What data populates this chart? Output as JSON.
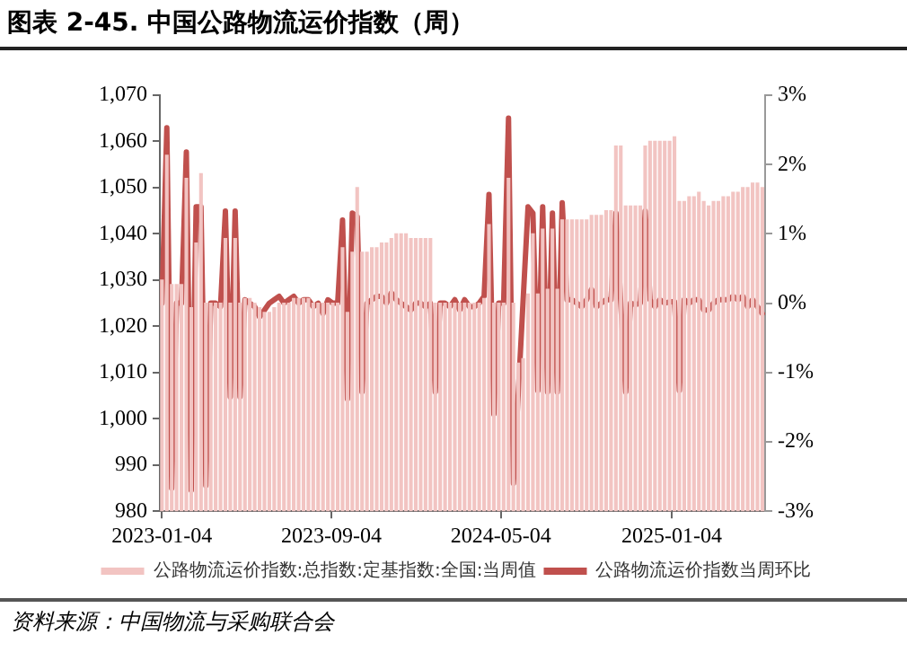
{
  "chart_data": {
    "type": "bar",
    "title": "图表 2-45. 中国公路物流运价指数（周）",
    "x": [
      "2023-01-04",
      "2023-01-11",
      "2023-01-18",
      "2023-01-25",
      "2023-02-01",
      "2023-02-08",
      "2023-02-15",
      "2023-02-22",
      "2023-03-01",
      "2023-03-08",
      "2023-03-15",
      "2023-03-22",
      "2023-03-29",
      "2023-04-05",
      "2023-04-12",
      "2023-04-19",
      "2023-04-26",
      "2023-05-03",
      "2023-05-10",
      "2023-05-17",
      "2023-05-24",
      "2023-05-31",
      "2023-06-07",
      "2023-06-14",
      "2023-06-21",
      "2023-06-28",
      "2023-07-05",
      "2023-07-12",
      "2023-07-19",
      "2023-07-26",
      "2023-08-02",
      "2023-08-09",
      "2023-08-16",
      "2023-08-23",
      "2023-08-30",
      "2023-09-06",
      "2023-09-13",
      "2023-09-20",
      "2023-09-27",
      "2023-10-04",
      "2023-10-11",
      "2023-10-18",
      "2023-10-25",
      "2023-11-01",
      "2023-11-08",
      "2023-11-15",
      "2023-11-22",
      "2023-11-29",
      "2023-12-06",
      "2023-12-13",
      "2023-12-20",
      "2023-12-27",
      "2024-01-03",
      "2024-01-10",
      "2024-01-17",
      "2024-01-24",
      "2024-01-31",
      "2024-02-07",
      "2024-02-14",
      "2024-02-21",
      "2024-02-28",
      "2024-03-06",
      "2024-03-13",
      "2024-03-20",
      "2024-03-27",
      "2024-04-03",
      "2024-04-10",
      "2024-04-17",
      "2024-04-24",
      "2024-05-01",
      "2024-05-08",
      "2024-05-15",
      "2024-05-22",
      "2024-05-29",
      "2024-06-05",
      "2024-06-12",
      "2024-06-19",
      "2024-06-26",
      "2024-07-03",
      "2024-07-10",
      "2024-07-17",
      "2024-07-24",
      "2024-07-31",
      "2024-08-07",
      "2024-08-14",
      "2024-08-21",
      "2024-08-28",
      "2024-09-04",
      "2024-09-11",
      "2024-09-18",
      "2024-09-25",
      "2024-10-02",
      "2024-10-09",
      "2024-10-16",
      "2024-10-23",
      "2024-10-30",
      "2024-11-06",
      "2024-11-13",
      "2024-11-20",
      "2024-11-27",
      "2024-12-04",
      "2024-12-11",
      "2024-12-18",
      "2024-12-25",
      "2025-01-01",
      "2025-01-08",
      "2025-01-15",
      "2025-01-22",
      "2025-01-29",
      "2025-02-05",
      "2025-02-12",
      "2025-02-19",
      "2025-02-26",
      "2025-03-05",
      "2025-03-12",
      "2025-03-19",
      "2025-03-26",
      "2025-04-02",
      "2025-04-09",
      "2025-04-16",
      "2025-04-23",
      "2025-04-30",
      "2025-05-07",
      "2025-05-14"
    ],
    "series": [
      {
        "name": "公路物流运价指数:总指数:定基指数:全国:当周值",
        "color": "#f2c4c2",
        "values": [
          1030,
          1057,
          1029,
          1029,
          1029,
          1052,
          1024,
          1038,
          1053,
          1025,
          1025,
          1025,
          1025,
          1039,
          1025,
          1039,
          1025,
          1026,
          1026,
          1025,
          1024,
          1023,
          1023,
          1024,
          1025,
          1025,
          1025,
          1026,
          1026,
          1026,
          1026,
          1025,
          1025,
          1025,
          1025,
          1025,
          1025,
          1037,
          1023,
          1036,
          1050,
          1036,
          1036,
          1037,
          1037,
          1038,
          1038,
          1039,
          1040,
          1040,
          1040,
          1039,
          1039,
          1039,
          1039,
          1039,
          1025,
          1025,
          1025,
          1025,
          1025,
          1025,
          1025,
          1025,
          1025,
          1025,
          1026,
          1042,
          1025,
          1025,
          1025,
          1052,
          1025,
          1012,
          1013,
          1027,
          1040,
          1027,
          1041,
          1028,
          1041,
          1028,
          1043,
          1043,
          1043,
          1043,
          1043,
          1043,
          1044,
          1044,
          1044,
          1045,
          1045,
          1059,
          1059,
          1046,
          1046,
          1046,
          1046,
          1059,
          1060,
          1060,
          1060,
          1060,
          1060,
          1061,
          1047,
          1047,
          1048,
          1048,
          1049,
          1047,
          1046,
          1047,
          1047,
          1048,
          1048,
          1049,
          1049,
          1050,
          1050,
          1051,
          1051,
          1050
        ]
      },
      {
        "name": "公路物流运价指数当周环比",
        "type": "line",
        "axis": "y2",
        "color": "#c0504d",
        "values": [
          0,
          2.53,
          -2.67,
          0,
          0,
          2.18,
          -2.7,
          1.39,
          1.39,
          -2.63,
          0,
          0,
          -0.05,
          1.33,
          -1.35,
          1.33,
          -1.35,
          0.05,
          0,
          -0.05,
          -0.2,
          -0.1,
          0,
          0.05,
          0.1,
          0,
          0.05,
          0.1,
          0,
          0.05,
          0.05,
          -0.05,
          0,
          -0.15,
          0.05,
          0,
          0,
          1.2,
          -1.38,
          1.3,
          1.25,
          -1.28,
          0,
          0.05,
          0.1,
          0.1,
          0,
          0.15,
          0.05,
          0,
          -0.05,
          -0.1,
          0,
          0,
          -0.05,
          0,
          -1.28,
          0,
          0,
          -0.05,
          0.05,
          -0.1,
          0.05,
          -0.05,
          -0.05,
          0,
          0.1,
          1.57,
          -1.6,
          0,
          0,
          2.67,
          -2.6,
          -1.3,
          0.05,
          1.39,
          1.3,
          -1.26,
          1.39,
          -1.28,
          1.3,
          -1.28,
          1.45,
          0.05,
          0.05,
          0,
          -0.05,
          0.05,
          0.2,
          -0.05,
          0,
          0.05,
          0.05,
          1.3,
          0,
          -1.28,
          0,
          -0.02,
          0,
          1.33,
          0.05,
          -0.05,
          0.05,
          0,
          0.02,
          0.02,
          -1.26,
          0.05,
          0,
          0.05,
          0.05,
          -0.1,
          -0.1,
          0,
          0.05,
          0.05,
          0.05,
          0.1,
          0.05,
          0.1,
          -0.05,
          0.05,
          -0.05,
          -0.15
        ]
      }
    ],
    "xlim": [
      "2023-01-01",
      "2025-05-18"
    ],
    "xticks": [
      "2023-01-04",
      "2023-09-04",
      "2024-05-04",
      "2025-01-04"
    ],
    "ylim": [
      980,
      1070
    ],
    "yticks": [
      980,
      990,
      {
        "value": 1000,
        "label": "1,000"
      },
      {
        "value": 1010,
        "label": "1,010"
      },
      {
        "value": 1020,
        "label": "1,020"
      },
      {
        "value": 1030,
        "label": "1,030"
      },
      {
        "value": 1040,
        "label": "1,040"
      },
      {
        "value": 1050,
        "label": "1,050"
      },
      {
        "value": 1060,
        "label": "1,060"
      },
      {
        "value": 1070,
        "label": "1,070"
      }
    ],
    "y2lim": [
      -3,
      3
    ],
    "y2ticks": [
      {
        "value": -3,
        "label": "-3%"
      },
      {
        "value": -2,
        "label": "-2%"
      },
      {
        "value": -1,
        "label": "-1%"
      },
      {
        "value": 0,
        "label": "0%"
      },
      {
        "value": 1,
        "label": "1%"
      },
      {
        "value": 2,
        "label": "2%"
      },
      {
        "value": 3,
        "label": "3%"
      }
    ],
    "grid": false,
    "legend": "bottom",
    "annotations": [
      "资料来源：中国物流与采购联合会"
    ]
  }
}
